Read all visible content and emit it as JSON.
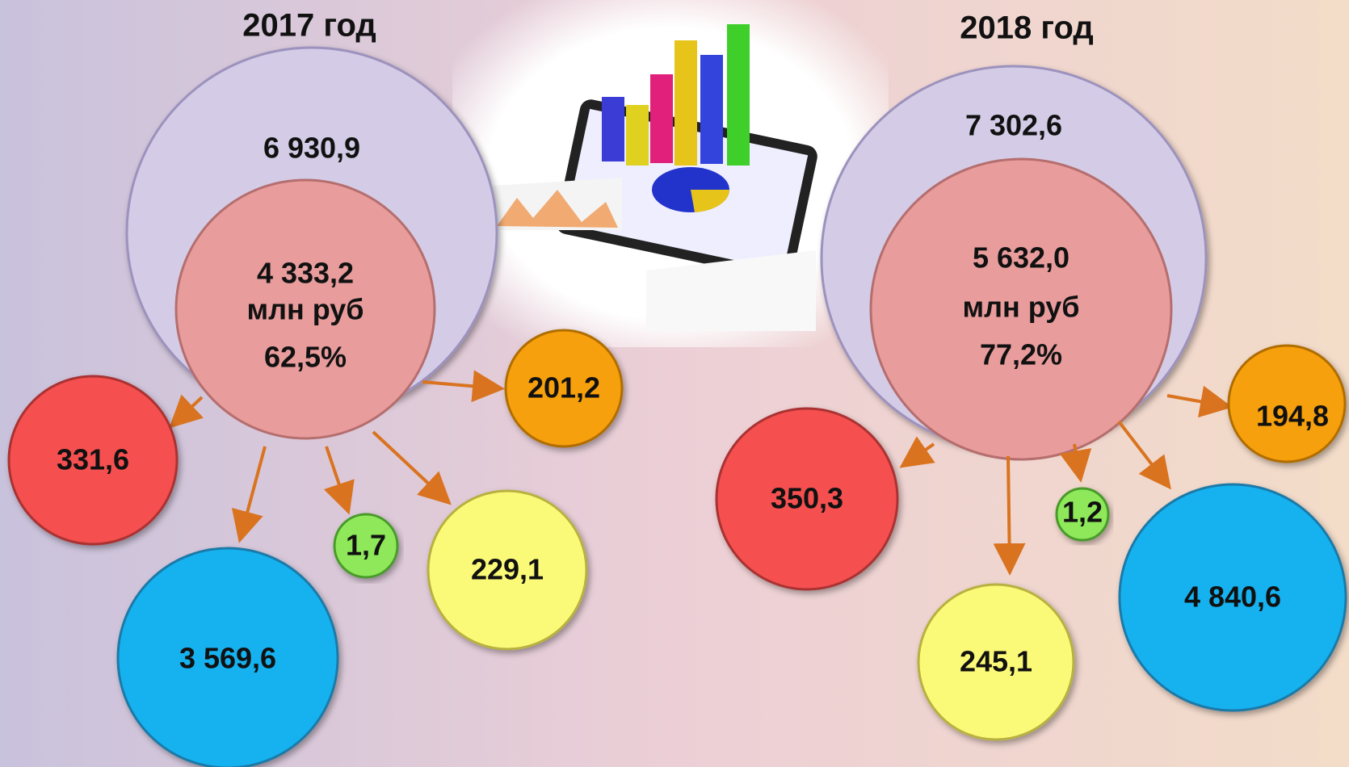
{
  "panels": [
    {
      "title": "2017 год",
      "total": "6 930,9",
      "core": {
        "value": "4 333,2",
        "unit": "млн руб",
        "share": "62,5%"
      },
      "bubbles": [
        "331,6",
        "3 569,6",
        "1,7",
        "229,1",
        "201,2"
      ]
    },
    {
      "title": "2018 год",
      "total": "7 302,6",
      "core": {
        "value": "5 632,0",
        "unit": "млн руб",
        "share": "77,2%"
      },
      "bubbles": [
        "350,3",
        "245,1",
        "1,2",
        "4 840,6",
        "194,8"
      ]
    }
  ]
}
